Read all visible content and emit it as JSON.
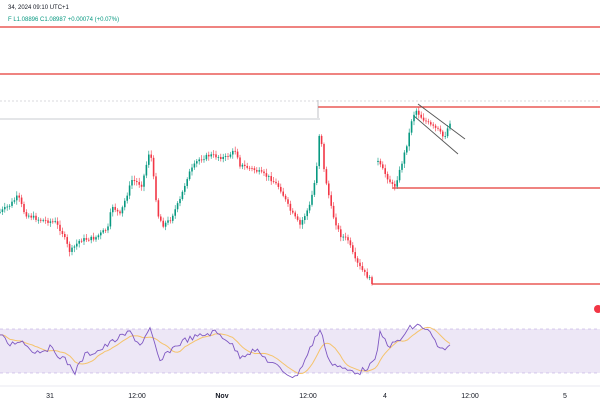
{
  "header": {
    "date_text": "34, 2024 09:10 UTC+1",
    "ohlc_text": "F L1.08896 C1.08987 +0.00074 (+0.07%)"
  },
  "colors": {
    "up": "#089981",
    "down": "#f23645",
    "level": "#e53935",
    "rsi_line": "#7e57c2",
    "rsi_ma": "#f5c36b",
    "rsi_band": "#ede7f6",
    "channel": "#555555",
    "grid": "#e0e3eb"
  },
  "time_axis": {
    "labels": [
      {
        "text": "31",
        "bold": false
      },
      {
        "text": "12:00",
        "bold": false
      },
      {
        "text": "Nov",
        "bold": true
      },
      {
        "text": "12:00",
        "bold": false
      },
      {
        "text": "4",
        "bold": false
      },
      {
        "text": "12:00",
        "bold": false
      },
      {
        "text": "5",
        "bold": false
      }
    ]
  },
  "indicators": {
    "rsi": {
      "upper_band": 70,
      "lower_band": 30
    }
  }
}
